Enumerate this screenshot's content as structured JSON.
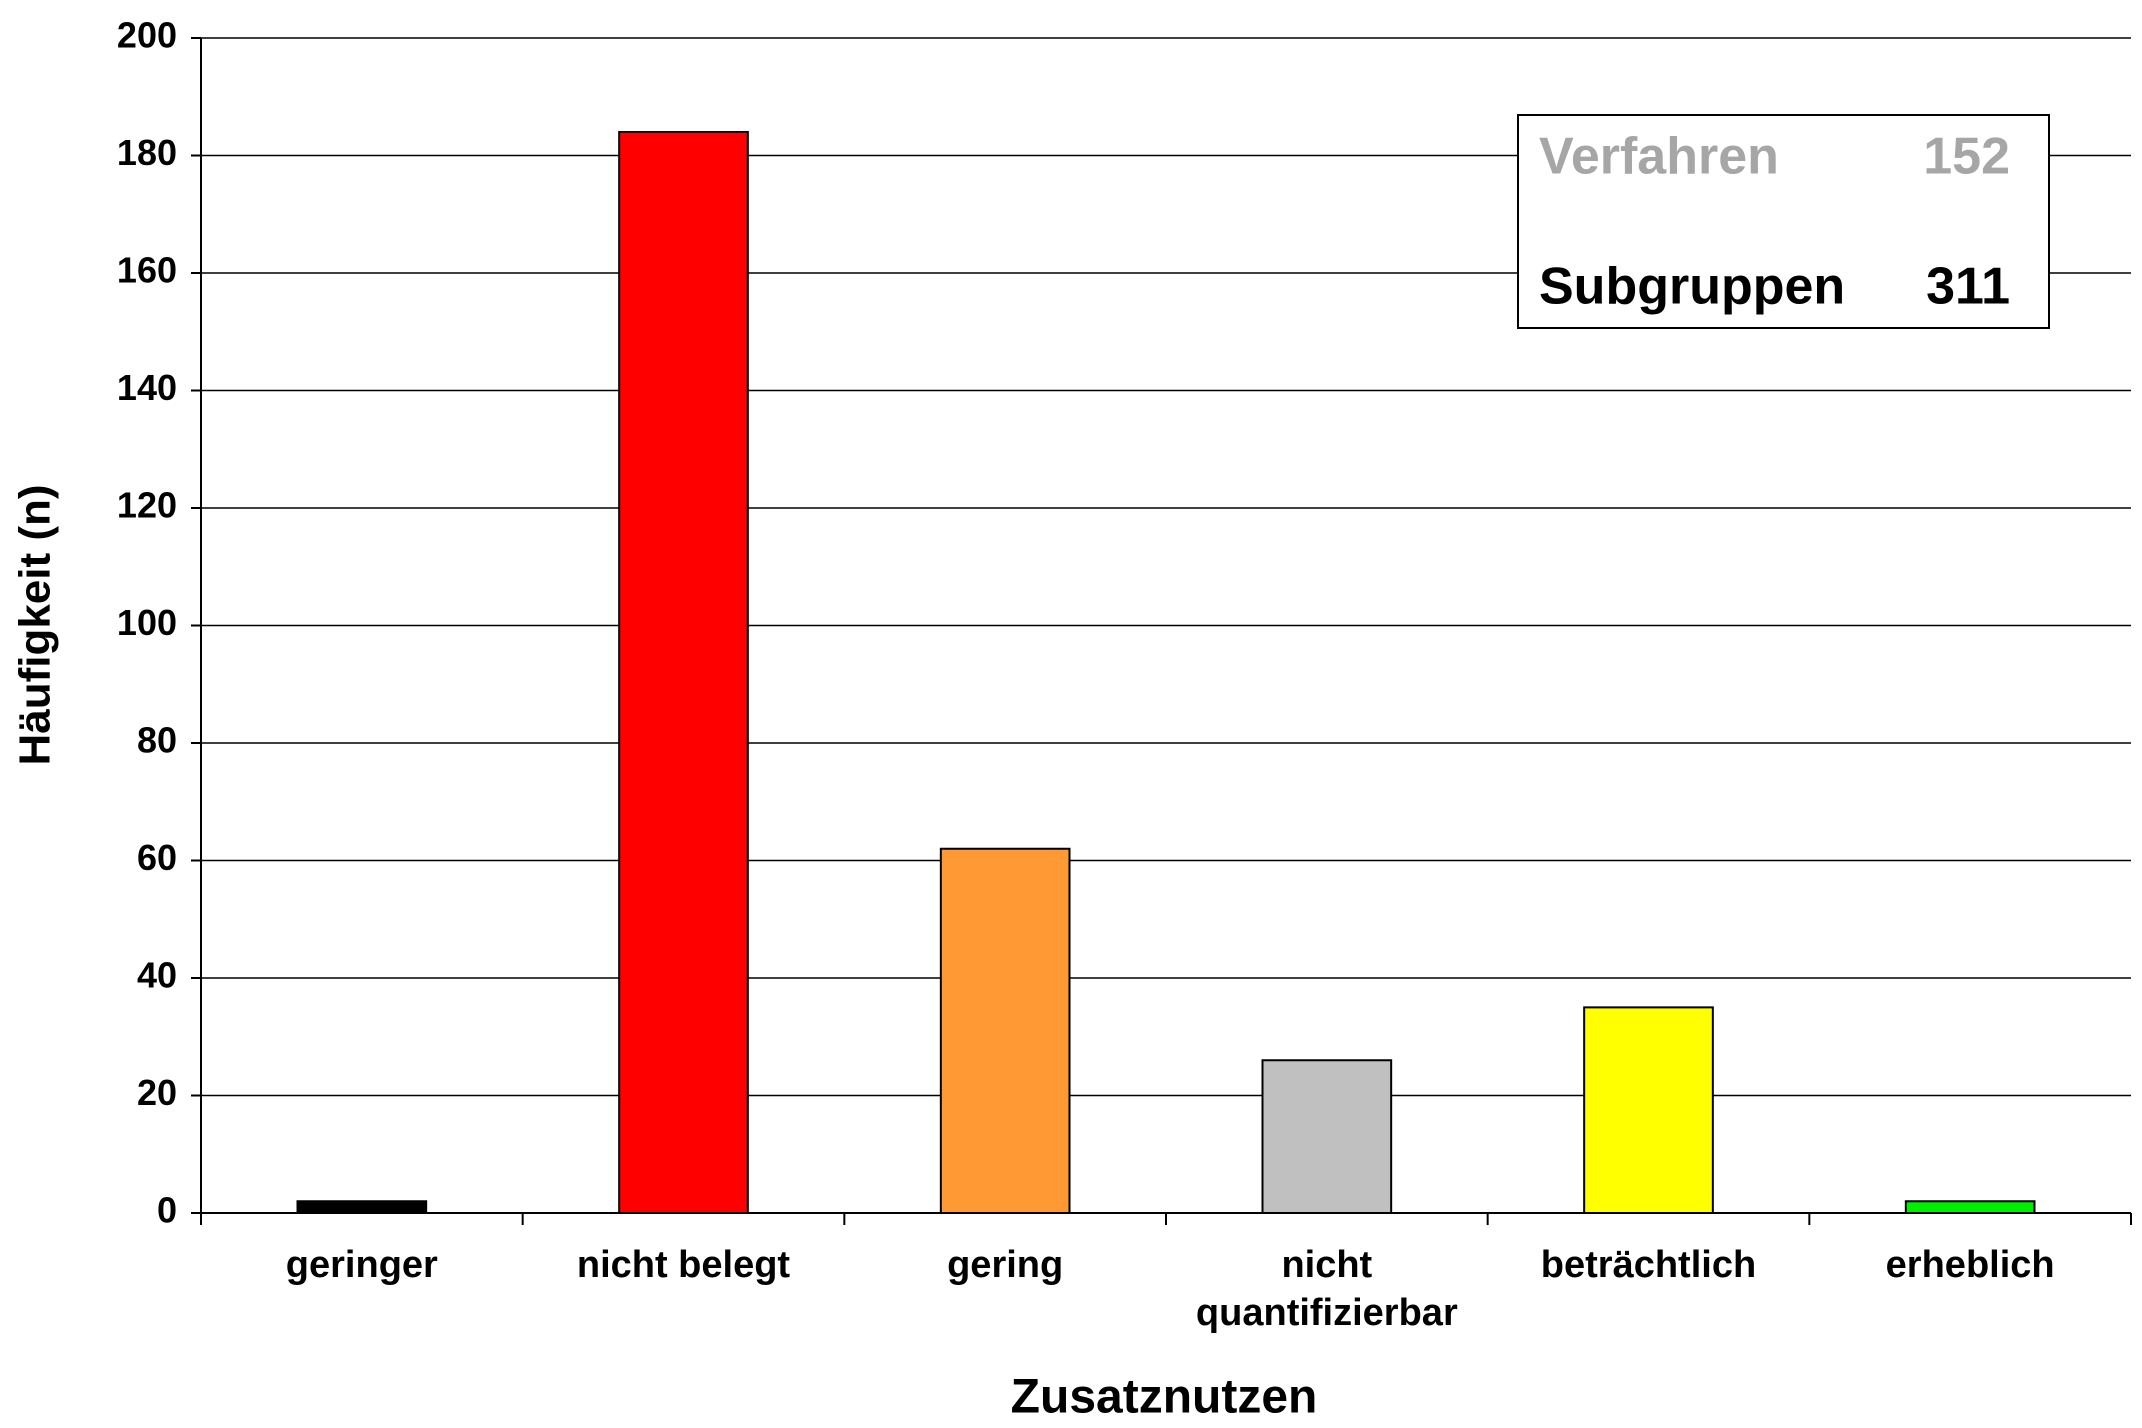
{
  "chart_data": {
    "type": "bar",
    "x_label": "Zusatznutzen",
    "y_label": "Häufigkeit (n)",
    "categories": [
      "geringer",
      "nicht belegt",
      "gering",
      "nicht quantifizierbar",
      "beträchtlich",
      "erheblich"
    ],
    "values": [
      2,
      184,
      62,
      26,
      35,
      2
    ],
    "colors": [
      "#000000",
      "#ff0000",
      "#ff9933",
      "#c0c0c0",
      "#ffff00",
      "#00ee00"
    ],
    "ylim": [
      0,
      200
    ],
    "yticks": [
      0,
      20,
      40,
      60,
      80,
      100,
      120,
      140,
      160,
      180,
      200
    ],
    "grid": true,
    "info_box": [
      {
        "label": "Verfahren",
        "value": 152,
        "color": "#a6a6a6"
      },
      {
        "label": "Subgruppen",
        "value": 311,
        "color": "#000000"
      }
    ]
  }
}
